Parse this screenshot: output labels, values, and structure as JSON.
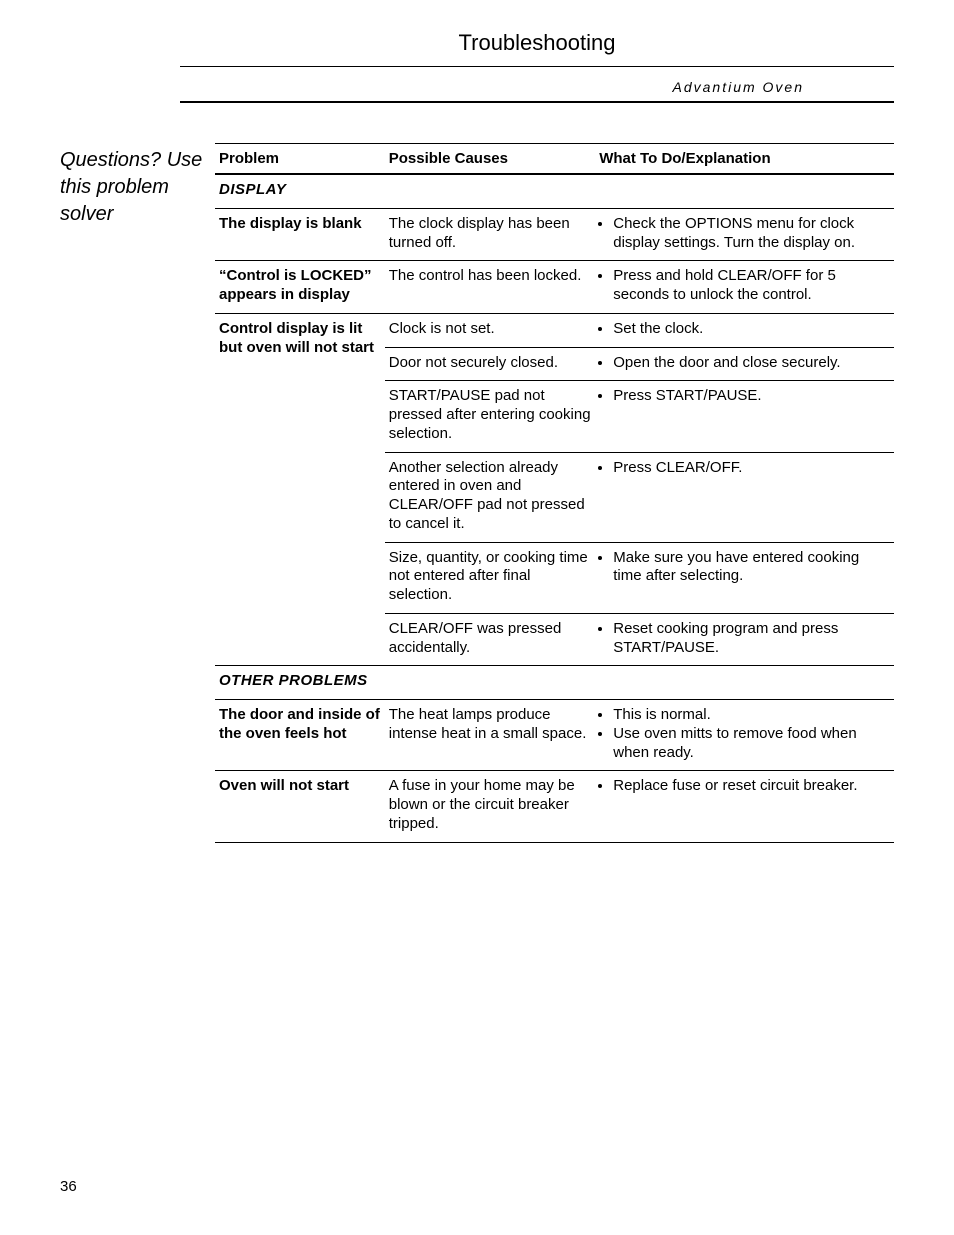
{
  "title": "Troubleshooting",
  "subtitle": "Advantium Oven",
  "sidebar": "Questions? Use this problem solver",
  "headers": {
    "problem": "Problem",
    "cause": "Possible Causes",
    "action": "What To Do/Explanation"
  },
  "sections": {
    "display": "DISPLAY",
    "other": "OTHER PROBLEMS"
  },
  "rows": {
    "r1": {
      "problem": "The display is blank",
      "cause": "The clock display has been turned off.",
      "actions": [
        "Check the OPTIONS menu for clock display settings. Turn the display on."
      ]
    },
    "r2": {
      "problem": "“Control is LOCKED” appears in display",
      "cause": "The control has been locked.",
      "actions": [
        "Press and hold CLEAR/OFF for 5 seconds to unlock the control."
      ]
    },
    "r3": {
      "problem": "Control display is lit but oven will not start",
      "c1": {
        "cause": "Clock is not set.",
        "actions": [
          "Set the clock."
        ]
      },
      "c2": {
        "cause": "Door not securely closed.",
        "actions": [
          "Open the door and close securely."
        ]
      },
      "c3": {
        "cause": "START/PAUSE pad not pressed after entering cooking selection.",
        "actions": [
          "Press START/PAUSE."
        ]
      },
      "c4": {
        "cause": "Another selection already entered in oven and CLEAR/OFF pad not pressed to cancel it.",
        "actions": [
          "Press CLEAR/OFF."
        ]
      },
      "c5": {
        "cause": "Size, quantity, or cooking time not entered after final selection.",
        "actions": [
          "Make sure you have entered cooking time after selecting."
        ]
      },
      "c6": {
        "cause": "CLEAR/OFF was pressed accidentally.",
        "actions": [
          "Reset cooking program and press START/PAUSE."
        ]
      }
    },
    "r4": {
      "problem": "The door and inside of the oven feels hot",
      "cause": "The heat lamps produce intense heat in a small space.",
      "actions": [
        "This is normal.",
        "Use oven mitts to remove food when when ready."
      ]
    },
    "r5": {
      "problem": "Oven will not start",
      "cause": "A fuse in your home may be blown or the circuit breaker tripped.",
      "actions": [
        "Replace fuse or reset circuit breaker."
      ]
    }
  },
  "pageNumber": "36"
}
